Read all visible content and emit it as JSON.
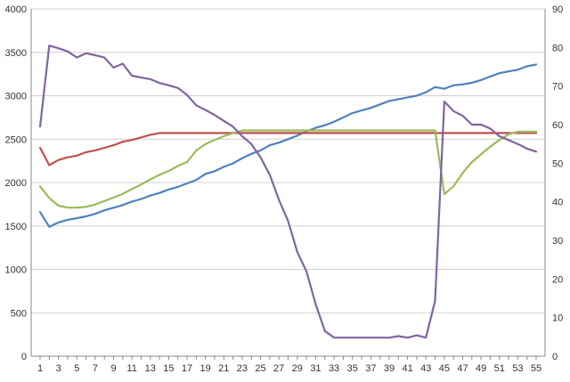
{
  "chart_data": {
    "type": "line",
    "title": "",
    "xlabel": "",
    "ylabel": "",
    "y2label": "",
    "x": [
      1,
      2,
      3,
      4,
      5,
      6,
      7,
      8,
      9,
      10,
      11,
      12,
      13,
      14,
      15,
      16,
      17,
      18,
      19,
      20,
      21,
      22,
      23,
      24,
      25,
      26,
      27,
      28,
      29,
      30,
      31,
      32,
      33,
      34,
      35,
      36,
      37,
      38,
      39,
      40,
      41,
      42,
      43,
      44,
      45,
      46,
      47,
      48,
      49,
      50,
      51,
      52,
      53,
      54,
      55
    ],
    "x_tick_labels": [
      "1",
      "3",
      "5",
      "7",
      "9",
      "11",
      "13",
      "15",
      "17",
      "19",
      "21",
      "23",
      "25",
      "27",
      "29",
      "31",
      "33",
      "35",
      "37",
      "39",
      "41",
      "43",
      "45",
      "47",
      "49",
      "51",
      "53",
      "55"
    ],
    "x_tick_values": [
      1,
      3,
      5,
      7,
      9,
      11,
      13,
      15,
      17,
      19,
      21,
      23,
      25,
      27,
      29,
      31,
      33,
      35,
      37,
      39,
      41,
      43,
      45,
      47,
      49,
      51,
      53,
      55
    ],
    "ylim": [
      0,
      4000
    ],
    "y_ticks": [
      0,
      500,
      1000,
      1500,
      2000,
      2500,
      3000,
      3500,
      4000
    ],
    "y2lim": [
      0,
      90
    ],
    "y2_ticks": [
      0,
      10,
      20,
      30,
      40,
      50,
      60,
      70,
      80,
      90
    ],
    "grid": true,
    "legend": "none",
    "series": [
      {
        "axis": "left",
        "color": "#4f81bd",
        "values": [
          1660,
          1490,
          1540,
          1570,
          1590,
          1610,
          1640,
          1680,
          1710,
          1740,
          1780,
          1810,
          1850,
          1880,
          1920,
          1950,
          1990,
          2030,
          2100,
          2130,
          2180,
          2220,
          2280,
          2330,
          2370,
          2430,
          2460,
          2500,
          2540,
          2590,
          2630,
          2660,
          2700,
          2750,
          2800,
          2830,
          2860,
          2900,
          2940,
          2960,
          2980,
          3000,
          3040,
          3100,
          3080,
          3120,
          3130,
          3150,
          3180,
          3220,
          3260,
          3280,
          3300,
          3340,
          3360
        ]
      },
      {
        "axis": "left",
        "color": "#c0504d",
        "values": [
          2400,
          2200,
          2260,
          2290,
          2310,
          2350,
          2370,
          2400,
          2430,
          2470,
          2490,
          2520,
          2550,
          2570,
          2570,
          2570,
          2570,
          2570,
          2570,
          2570,
          2570,
          2570,
          2570,
          2570,
          2570,
          2570,
          2570,
          2570,
          2570,
          2570,
          2570,
          2570,
          2570,
          2570,
          2570,
          2570,
          2570,
          2570,
          2570,
          2570,
          2570,
          2570,
          2570,
          2570,
          2570,
          2570,
          2570,
          2570,
          2570,
          2570,
          2570,
          2570,
          2570,
          2570,
          2570
        ]
      },
      {
        "axis": "right",
        "color": "#9bbb59",
        "values": [
          44,
          41,
          39,
          38.5,
          38.5,
          38.7,
          39.3,
          40.2,
          41.1,
          42.1,
          43.3,
          44.5,
          45.8,
          47,
          48,
          49.3,
          50.3,
          53.3,
          55,
          56,
          57,
          57.8,
          58.5,
          58.5,
          58.5,
          58.5,
          58.5,
          58.5,
          58.5,
          58.5,
          58.5,
          58.5,
          58.5,
          58.5,
          58.5,
          58.5,
          58.5,
          58.5,
          58.5,
          58.5,
          58.5,
          58.5,
          58.5,
          58.5,
          42,
          44,
          47.5,
          50.3,
          52.3,
          54.3,
          56,
          57.5,
          58.2,
          58.2,
          58.2
        ]
      },
      {
        "axis": "right",
        "color": "#8064a2",
        "values": [
          59.5,
          80.5,
          79.8,
          79,
          77.4,
          78.5,
          78,
          77.4,
          74.8,
          75.8,
          72.7,
          72.2,
          71.8,
          70.8,
          70.2,
          69.5,
          67.7,
          65,
          63.8,
          62.5,
          61,
          59.5,
          57,
          55,
          51.5,
          47,
          40.5,
          35,
          27,
          22,
          13.5,
          6.5,
          4.8,
          4.8,
          4.8,
          4.8,
          4.8,
          4.8,
          4.8,
          5.2,
          4.8,
          5.4,
          4.8,
          14.3,
          66,
          63.5,
          62.3,
          60,
          60,
          59,
          57,
          56,
          55,
          53.8,
          53
        ]
      }
    ]
  }
}
